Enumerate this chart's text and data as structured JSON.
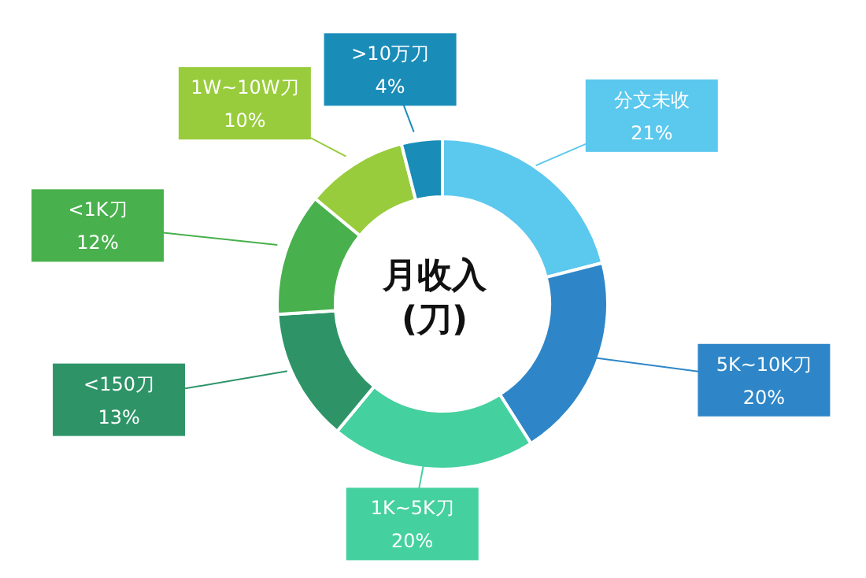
{
  "chart_data": {
    "type": "donut",
    "title": "月收入\n(刀)",
    "categories": [
      "分文未收",
      "5K~10K刀",
      "1K~5K刀",
      "<150刀",
      "<1K刀",
      "1W~10W刀",
      ">10万刀"
    ],
    "values": [
      21,
      20,
      20,
      13,
      12,
      10,
      4
    ],
    "colors": [
      "#5bc8ee",
      "#2e86c8",
      "#45d0a0",
      "#2e9468",
      "#48b04c",
      "#98cc3c",
      "#1a8cb8"
    ],
    "value_labels": [
      "21%",
      "20%",
      "20%",
      "13%",
      "12%",
      "10%",
      "4%"
    ]
  }
}
